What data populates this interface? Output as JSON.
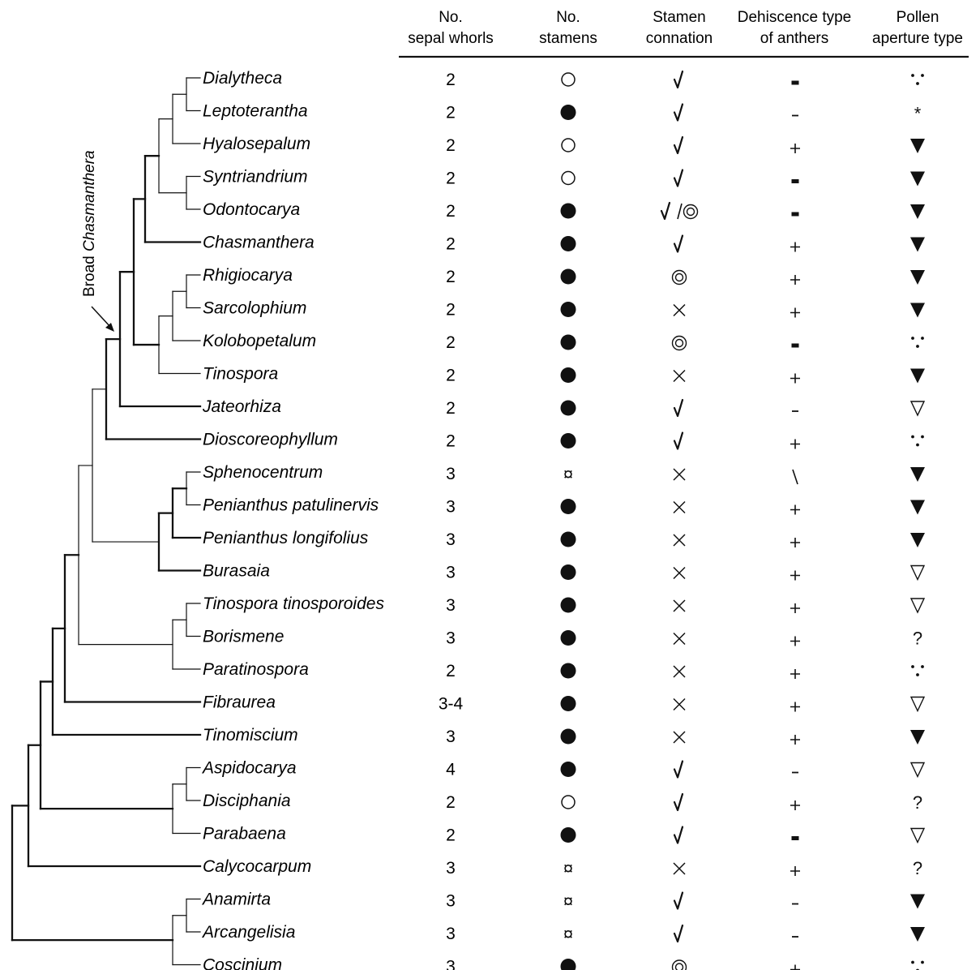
{
  "columns": [
    {
      "key": "sepal",
      "line1": "No.",
      "line2": "sepal whorls"
    },
    {
      "key": "stamens",
      "line1": "No.",
      "line2": "stamens"
    },
    {
      "key": "connation",
      "line1": "Stamen",
      "line2": "connation"
    },
    {
      "key": "dehiscence",
      "line1": "Dehiscence type",
      "line2": "of anthers"
    },
    {
      "key": "pollen",
      "line1": "Pollen",
      "line2": "aperture type"
    }
  ],
  "clade_label": {
    "prefix": "Broad ",
    "italic": "Chasmanthera"
  },
  "taxa": [
    {
      "name": "Dialytheca",
      "sepal": "2",
      "stamens": "open-circle",
      "connation": "check",
      "dehiscence": "minus-bold",
      "pollen": "three-dots"
    },
    {
      "name": "Leptoterantha",
      "sepal": "2",
      "stamens": "filled-circle",
      "connation": "check",
      "dehiscence": "minus",
      "pollen": "asterisk"
    },
    {
      "name": "Hyalosepalum",
      "sepal": "2",
      "stamens": "open-circle",
      "connation": "check",
      "dehiscence": "plus",
      "pollen": "filled-triangle"
    },
    {
      "name": "Syntriandrium",
      "sepal": "2",
      "stamens": "open-circle",
      "connation": "check",
      "dehiscence": "minus-bold",
      "pollen": "filled-triangle"
    },
    {
      "name": "Odontocarya",
      "sepal": "2",
      "stamens": "filled-circle",
      "connation": "check-or-double-circle",
      "dehiscence": "minus-bold",
      "pollen": "filled-triangle"
    },
    {
      "name": "Chasmanthera",
      "sepal": "2",
      "stamens": "filled-circle",
      "connation": "check",
      "dehiscence": "plus",
      "pollen": "filled-triangle"
    },
    {
      "name": "Rhigiocarya",
      "sepal": "2",
      "stamens": "filled-circle",
      "connation": "double-circle",
      "dehiscence": "plus",
      "pollen": "filled-triangle"
    },
    {
      "name": "Sarcolophium",
      "sepal": "2",
      "stamens": "filled-circle",
      "connation": "cross",
      "dehiscence": "plus",
      "pollen": "filled-triangle"
    },
    {
      "name": "Kolobopetalum",
      "sepal": "2",
      "stamens": "filled-circle",
      "connation": "double-circle",
      "dehiscence": "minus-bold",
      "pollen": "three-dots"
    },
    {
      "name": "Tinospora",
      "sepal": "2",
      "stamens": "filled-circle",
      "connation": "cross",
      "dehiscence": "plus",
      "pollen": "filled-triangle"
    },
    {
      "name": "Jateorhiza",
      "sepal": "2",
      "stamens": "filled-circle",
      "connation": "check",
      "dehiscence": "minus",
      "pollen": "open-triangle"
    },
    {
      "name": "Dioscoreophyllum",
      "sepal": "2",
      "stamens": "filled-circle",
      "connation": "check",
      "dehiscence": "plus",
      "pollen": "three-dots"
    },
    {
      "name": "Sphenocentrum",
      "sepal": "3",
      "stamens": "currency",
      "connation": "cross",
      "dehiscence": "backslash",
      "pollen": "filled-triangle"
    },
    {
      "name": "Penianthus patulinervis",
      "sepal": "3",
      "stamens": "filled-circle",
      "connation": "cross",
      "dehiscence": "plus",
      "pollen": "filled-triangle"
    },
    {
      "name": "Penianthus longifolius",
      "sepal": "3",
      "stamens": "filled-circle",
      "connation": "cross",
      "dehiscence": "plus",
      "pollen": "filled-triangle"
    },
    {
      "name": "Burasaia",
      "sepal": "3",
      "stamens": "filled-circle",
      "connation": "cross",
      "dehiscence": "plus",
      "pollen": "open-triangle"
    },
    {
      "name": "Tinospora tinosporoides",
      "sepal": "3",
      "stamens": "filled-circle",
      "connation": "cross",
      "dehiscence": "plus",
      "pollen": "open-triangle"
    },
    {
      "name": "Borismene",
      "sepal": "3",
      "stamens": "filled-circle",
      "connation": "cross",
      "dehiscence": "plus",
      "pollen": "question"
    },
    {
      "name": "Paratinospora",
      "sepal": "2",
      "stamens": "filled-circle",
      "connation": "cross",
      "dehiscence": "plus",
      "pollen": "three-dots"
    },
    {
      "name": "Fibraurea",
      "sepal": "3-4",
      "stamens": "filled-circle",
      "connation": "cross",
      "dehiscence": "plus",
      "pollen": "open-triangle"
    },
    {
      "name": "Tinomiscium",
      "sepal": "3",
      "stamens": "filled-circle",
      "connation": "cross",
      "dehiscence": "plus",
      "pollen": "filled-triangle"
    },
    {
      "name": "Aspidocarya",
      "sepal": "4",
      "stamens": "filled-circle",
      "connation": "check",
      "dehiscence": "minus",
      "pollen": "open-triangle"
    },
    {
      "name": "Disciphania",
      "sepal": "2",
      "stamens": "open-circle",
      "connation": "check",
      "dehiscence": "plus",
      "pollen": "question"
    },
    {
      "name": "Parabaena",
      "sepal": "2",
      "stamens": "filled-circle",
      "connation": "check",
      "dehiscence": "minus-bold",
      "pollen": "open-triangle"
    },
    {
      "name": "Calycocarpum",
      "sepal": "3",
      "stamens": "currency",
      "connation": "cross",
      "dehiscence": "plus",
      "pollen": "question"
    },
    {
      "name": "Anamirta",
      "sepal": "3",
      "stamens": "currency",
      "connation": "check",
      "dehiscence": "minus",
      "pollen": "filled-triangle"
    },
    {
      "name": "Arcangelisia",
      "sepal": "3",
      "stamens": "currency",
      "connation": "check",
      "dehiscence": "minus",
      "pollen": "filled-triangle"
    },
    {
      "name": "Coscinium",
      "sepal": "3",
      "stamens": "filled-circle",
      "connation": "double-circle",
      "dehiscence": "plus",
      "pollen": "three-dots"
    }
  ]
}
